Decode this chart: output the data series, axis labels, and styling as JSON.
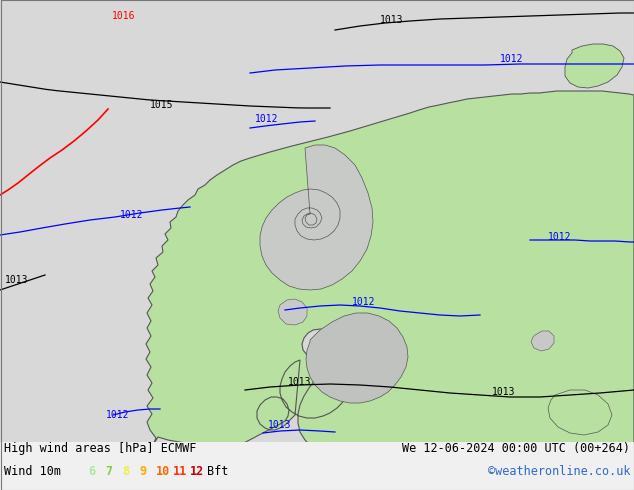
{
  "title_left": "High wind areas [hPa] ECMWF",
  "title_right": "We 12-06-2024 00:00 UTC (00+264)",
  "subtitle_left": "Wind 10m",
  "subtitle_right": "©weatheronline.co.uk",
  "legend_labels": [
    "6",
    "7",
    "8",
    "9",
    "10",
    "11",
    "12",
    "Bft"
  ],
  "legend_colors": [
    "#aee8a0",
    "#77cc33",
    "#eeee44",
    "#ffaa00",
    "#ff6600",
    "#ff3300",
    "#cc0000",
    "#000000"
  ],
  "bg_color": "#d8d8d8",
  "sea_color": "#d8d8d8",
  "land_color": "#b8e0a0",
  "land_edge": "#555555",
  "baltic_color": "#c8c8c8",
  "info_bg": "#f0f0f0"
}
